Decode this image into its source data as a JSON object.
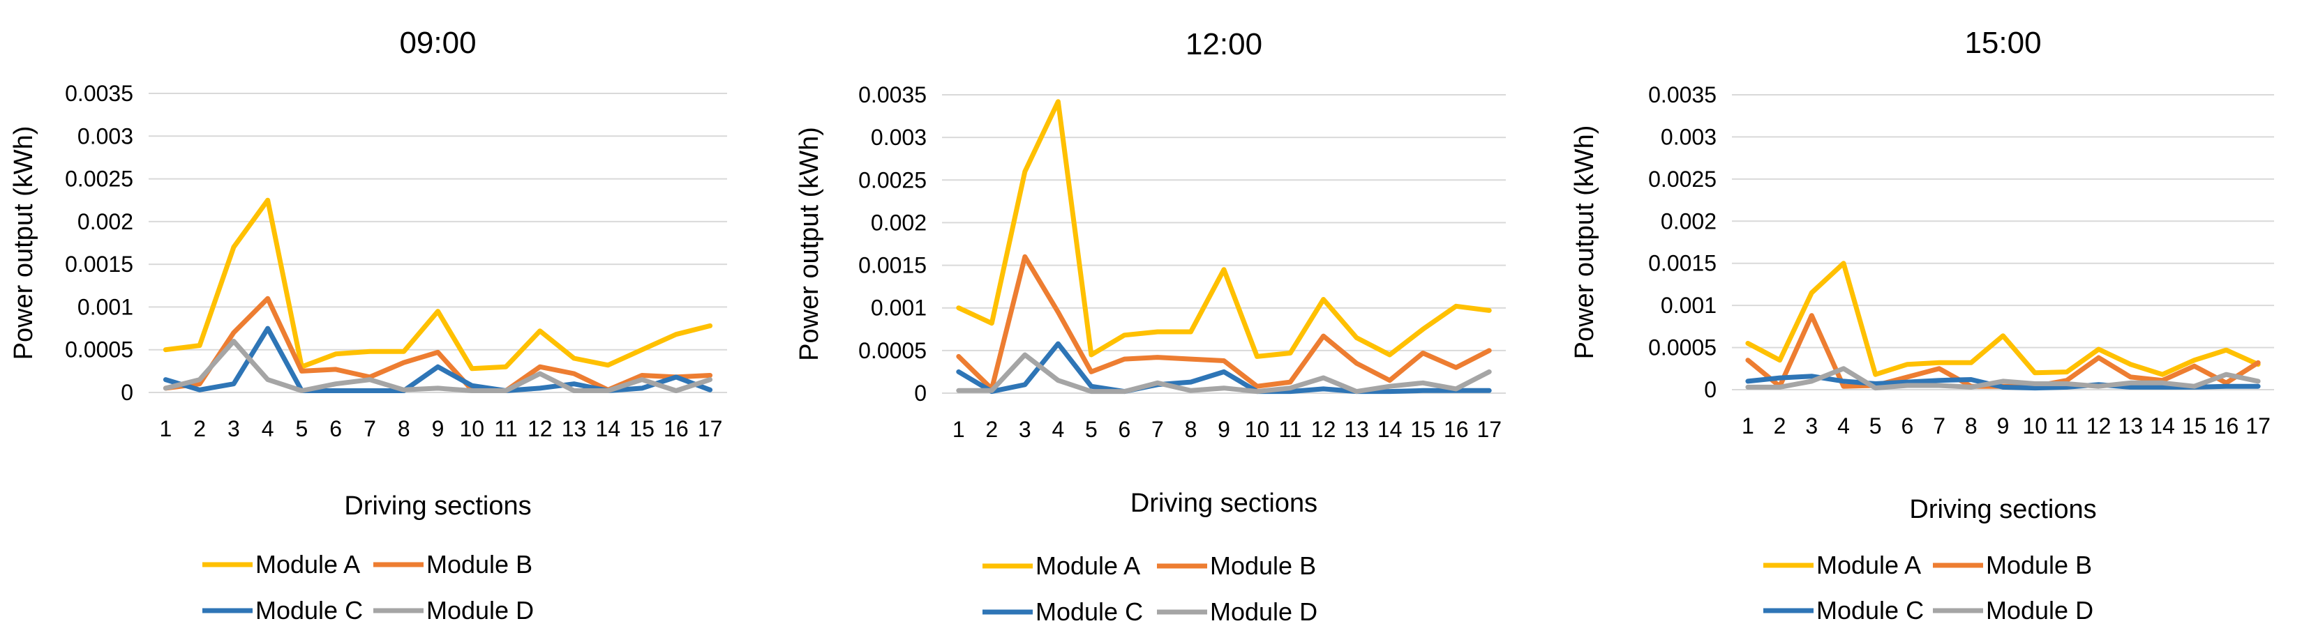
{
  "chart_data": [
    {
      "type": "line",
      "title": "09:00",
      "xlabel": "Driving sections",
      "ylabel": "Power output (kWh)",
      "ylim": [
        0,
        0.0035
      ],
      "yticks": [
        "0",
        "0.0005",
        "0.001",
        "0.0015",
        "0.002",
        "0.0025",
        "0.003",
        "0.0035"
      ],
      "categories": [
        "1",
        "2",
        "3",
        "4",
        "5",
        "6",
        "7",
        "8",
        "9",
        "10",
        "11",
        "12",
        "13",
        "14",
        "15",
        "16",
        "17"
      ],
      "series": [
        {
          "name": "Module A",
          "color": "#FFC000",
          "values": [
            0.0005,
            0.00055,
            0.0017,
            0.00225,
            0.0003,
            0.00045,
            0.00048,
            0.00048,
            0.00095,
            0.00028,
            0.0003,
            0.00072,
            0.0004,
            0.00032,
            0.0005,
            0.00068,
            0.00078
          ]
        },
        {
          "name": "Module B",
          "color": "#ED7D31",
          "values": [
            5e-05,
            0.0001,
            0.0007,
            0.0011,
            0.00025,
            0.00027,
            0.00018,
            0.00035,
            0.00047,
            3e-05,
            2e-05,
            0.0003,
            0.00022,
            3e-05,
            0.0002,
            0.00018,
            0.0002
          ]
        },
        {
          "name": "Module C",
          "color": "#2E75B6",
          "values": [
            0.00015,
            3e-05,
            0.0001,
            0.00075,
            2e-05,
            2e-05,
            2e-05,
            2e-05,
            0.0003,
            8e-05,
            2e-05,
            5e-05,
            0.0001,
            2e-05,
            5e-05,
            0.00018,
            3e-05
          ]
        },
        {
          "name": "Module D",
          "color": "#A5A5A5",
          "values": [
            5e-05,
            0.00015,
            0.0006,
            0.00015,
            2e-05,
            0.0001,
            0.00015,
            3e-05,
            5e-05,
            2e-05,
            2e-05,
            0.00022,
            2e-05,
            2e-05,
            0.00015,
            2e-05,
            0.00015
          ]
        }
      ]
    },
    {
      "type": "line",
      "title": "12:00",
      "xlabel": "Driving sections",
      "ylabel": "Power output (kWh)",
      "ylim": [
        0,
        0.0035
      ],
      "yticks": [
        "0",
        "0.0005",
        "0.001",
        "0.0015",
        "0.002",
        "0.0025",
        "0.003",
        "0.0035"
      ],
      "categories": [
        "1",
        "2",
        "3",
        "4",
        "5",
        "6",
        "7",
        "8",
        "9",
        "10",
        "11",
        "12",
        "13",
        "14",
        "15",
        "16",
        "17"
      ],
      "series": [
        {
          "name": "Module A",
          "color": "#FFC000",
          "values": [
            0.001,
            0.00082,
            0.0026,
            0.00342,
            0.00045,
            0.00068,
            0.00072,
            0.00072,
            0.00145,
            0.00043,
            0.00047,
            0.0011,
            0.00065,
            0.00045,
            0.00075,
            0.00102,
            0.00097
          ]
        },
        {
          "name": "Module B",
          "color": "#ED7D31",
          "values": [
            0.00043,
            5e-05,
            0.0016,
            0.00095,
            0.00025,
            0.0004,
            0.00042,
            0.0004,
            0.00038,
            8e-05,
            0.00013,
            0.00067,
            0.00035,
            0.00015,
            0.00047,
            0.0003,
            0.0005
          ]
        },
        {
          "name": "Module C",
          "color": "#2E75B6",
          "values": [
            0.00025,
            2e-05,
            0.0001,
            0.00058,
            8e-05,
            2e-05,
            0.0001,
            0.00013,
            0.00025,
            2e-05,
            2e-05,
            5e-05,
            2e-05,
            2e-05,
            3e-05,
            3e-05,
            3e-05
          ]
        },
        {
          "name": "Module D",
          "color": "#A5A5A5",
          "values": [
            3e-05,
            3e-05,
            0.00045,
            0.00015,
            2e-05,
            2e-05,
            0.00012,
            3e-05,
            6e-05,
            2e-05,
            6e-05,
            0.00018,
            2e-05,
            8e-05,
            0.00012,
            5e-05,
            0.00025
          ]
        }
      ]
    },
    {
      "type": "line",
      "title": "15:00",
      "xlabel": "Driving sections",
      "ylabel": "Power output (kWh)",
      "ylim": [
        0,
        0.0035
      ],
      "yticks": [
        "0",
        "0.0005",
        "0.001",
        "0.0015",
        "0.002",
        "0.0025",
        "0.003",
        "0.0035"
      ],
      "categories": [
        "1",
        "2",
        "3",
        "4",
        "5",
        "6",
        "7",
        "8",
        "9",
        "10",
        "11",
        "12",
        "13",
        "14",
        "15",
        "16",
        "17"
      ],
      "series": [
        {
          "name": "Module A",
          "color": "#FFC000",
          "values": [
            0.00055,
            0.00035,
            0.00115,
            0.0015,
            0.00018,
            0.0003,
            0.00032,
            0.00032,
            0.00064,
            0.0002,
            0.00021,
            0.00048,
            0.0003,
            0.00018,
            0.00035,
            0.00047,
            0.0003
          ]
        },
        {
          "name": "Module B",
          "color": "#ED7D31",
          "values": [
            0.00035,
            4e-05,
            0.00088,
            4e-05,
            5e-05,
            0.00015,
            0.00025,
            4e-05,
            4e-05,
            4e-05,
            0.00011,
            0.00038,
            0.00015,
            0.00011,
            0.00028,
            8e-05,
            0.00032
          ]
        },
        {
          "name": "Module C",
          "color": "#2E75B6",
          "values": [
            0.0001,
            0.00014,
            0.00016,
            0.0001,
            7e-05,
            9e-05,
            0.00011,
            0.00012,
            3e-05,
            2e-05,
            3e-05,
            6e-05,
            3e-05,
            3e-05,
            3e-05,
            4e-05,
            4e-05
          ]
        },
        {
          "name": "Module D",
          "color": "#A5A5A5",
          "values": [
            3e-05,
            3e-05,
            0.0001,
            0.00025,
            2e-05,
            5e-05,
            5e-05,
            3e-05,
            0.0001,
            7e-05,
            7e-05,
            4e-05,
            8e-05,
            8e-05,
            4e-05,
            0.00018,
            0.0001
          ]
        }
      ]
    }
  ]
}
